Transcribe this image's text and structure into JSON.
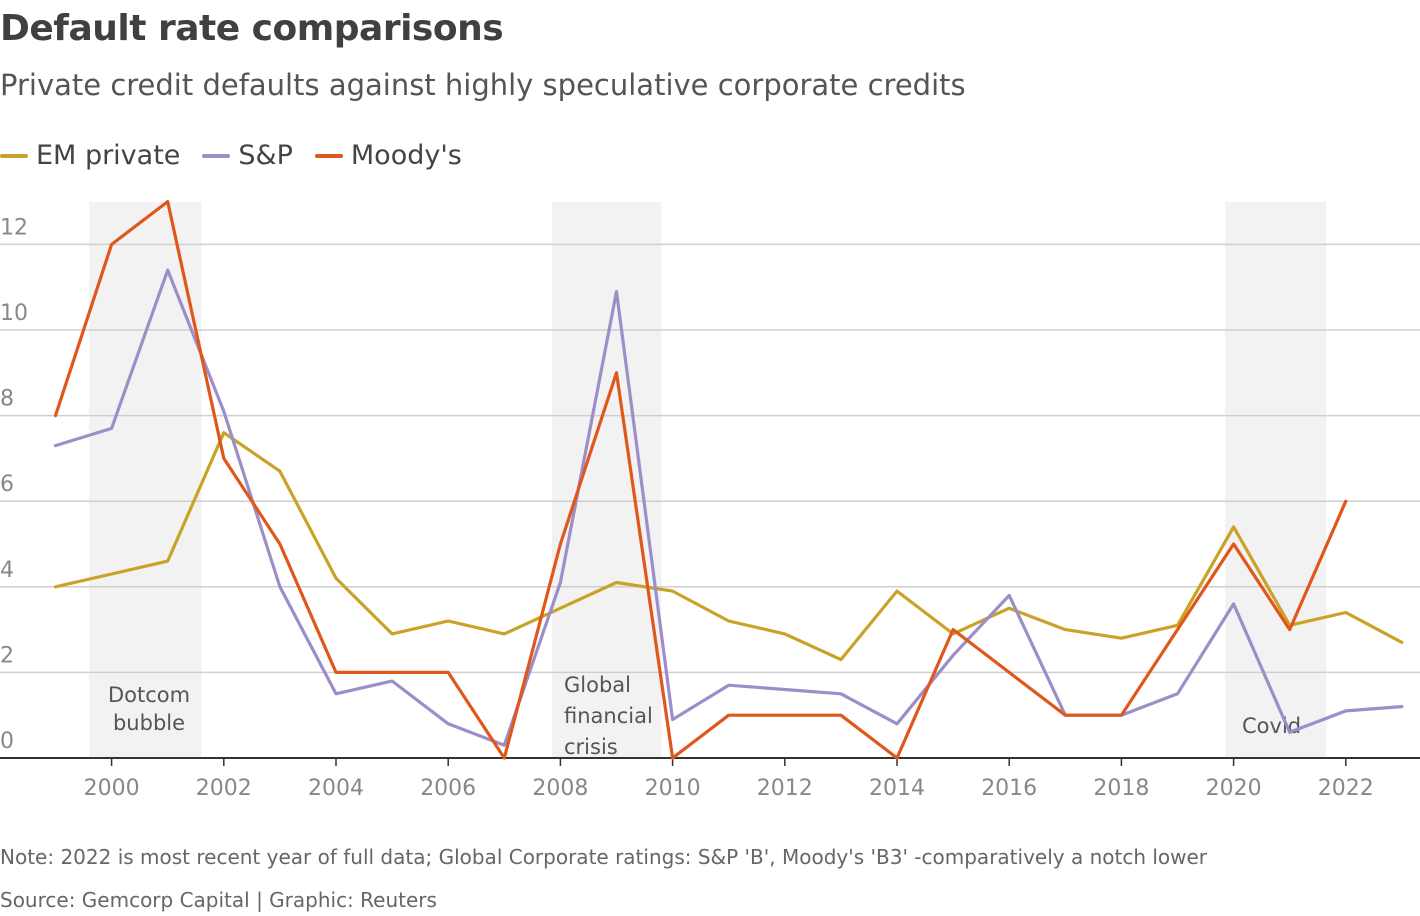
{
  "chart_data": {
    "type": "line",
    "title": "Default rate comparisons",
    "subtitle": "Private credit defaults against highly speculative corporate credits",
    "xlabel": "",
    "ylabel": "",
    "ylim": [
      0,
      13
    ],
    "yticks": [
      0,
      2,
      4,
      6,
      8,
      10,
      12
    ],
    "xticks": [
      2000,
      2002,
      2004,
      2006,
      2008,
      2010,
      2012,
      2014,
      2016,
      2018,
      2020,
      2022
    ],
    "xlim": [
      1998.6,
      2023.4
    ],
    "series": [
      {
        "name": "EM private",
        "color": "#c9a227",
        "x": [
          1999,
          2000,
          2001,
          2002,
          2003,
          2004,
          2005,
          2006,
          2007,
          2008,
          2009,
          2010,
          2011,
          2012,
          2013,
          2014,
          2015,
          2016,
          2017,
          2018,
          2019,
          2020,
          2021,
          2022,
          2023
        ],
        "values": [
          4.0,
          4.3,
          4.6,
          7.6,
          6.7,
          4.2,
          2.9,
          3.2,
          2.9,
          3.5,
          4.1,
          3.9,
          3.2,
          2.9,
          2.3,
          3.9,
          2.9,
          3.5,
          3.0,
          2.8,
          3.1,
          5.4,
          3.1,
          3.4,
          2.7
        ]
      },
      {
        "name": "S&P",
        "color": "#9b8ec9",
        "x": [
          1999,
          2000,
          2001,
          2002,
          2003,
          2004,
          2005,
          2006,
          2007,
          2008,
          2009,
          2010,
          2011,
          2012,
          2013,
          2014,
          2015,
          2016,
          2017,
          2018,
          2019,
          2020,
          2021,
          2022,
          2023
        ],
        "values": [
          7.3,
          7.7,
          11.4,
          8.1,
          4.0,
          1.5,
          1.8,
          0.8,
          0.3,
          4.1,
          10.9,
          0.9,
          1.7,
          1.6,
          1.5,
          0.8,
          2.4,
          3.8,
          1.0,
          1.0,
          1.5,
          3.6,
          0.6,
          1.1,
          1.2
        ]
      },
      {
        "name": "Moody's",
        "color": "#e0571b",
        "x": [
          1999,
          2000,
          2001,
          2002,
          2003,
          2004,
          2005,
          2006,
          2007,
          2008,
          2009,
          2010,
          2011,
          2012,
          2013,
          2014,
          2015,
          2016,
          2017,
          2018,
          2019,
          2020,
          2021,
          2022
        ],
        "values": [
          8,
          12,
          13,
          7,
          5,
          2,
          2,
          2,
          0,
          5,
          9,
          0,
          1,
          1,
          1,
          0,
          3,
          2,
          1,
          1,
          3,
          5,
          3,
          6
        ]
      }
    ],
    "shaded_periods": [
      {
        "start": 1999.6,
        "end": 2001.6,
        "label_lines": [
          "Dotcom",
          "bubble"
        ]
      },
      {
        "start": 2007.85,
        "end": 2009.8,
        "label_lines": [
          "Global",
          "financial",
          "crisis"
        ]
      },
      {
        "start": 2019.85,
        "end": 2021.65,
        "label_lines": [
          "Covid"
        ]
      }
    ]
  },
  "legend": {
    "items": [
      {
        "label": "EM private",
        "color": "#c9a227"
      },
      {
        "label": "S&P",
        "color": "#9b8ec9"
      },
      {
        "label": "Moody's",
        "color": "#e0571b"
      }
    ]
  },
  "footer": {
    "note": "Note: 2022 is most recent year of full data; Global Corporate ratings: S&P 'B', Moody's 'B3' -comparatively a notch lower",
    "source": "Source: Gemcorp Capital | Graphic: Reuters"
  }
}
